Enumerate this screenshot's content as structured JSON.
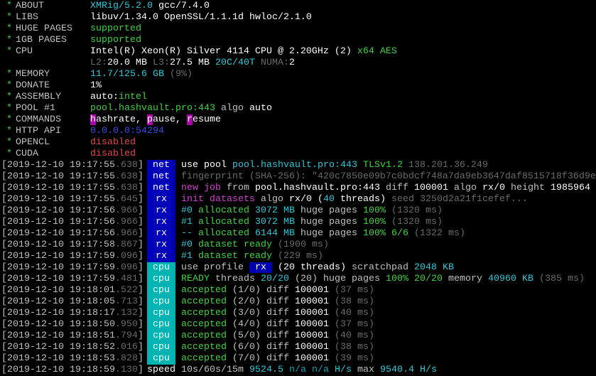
{
  "colors": {
    "w": "#c0c0c0",
    "W": "#ffffff",
    "d": "#6a6a6a",
    "g": "#3fd33f",
    "c": "#2cc8d8",
    "c2": "#1b9fb0",
    "b": "#3a4de8",
    "r": "#e04848",
    "m": "#d040d0",
    "star": "#3fd33f",
    "tag_net": "#0000b8",
    "tag_rx": "#0000b8",
    "tag_cpu": "#00b4b4"
  },
  "header": [
    {
      "star": "*",
      "label": "ABOUT",
      "segs": [
        {
          "t": "XMRig/5.2.0",
          "c": "c"
        },
        {
          "t": " gcc/7.4.0",
          "c": "W"
        }
      ]
    },
    {
      "star": "*",
      "label": "LIBS",
      "segs": [
        {
          "t": "libuv/1.34.0 OpenSSL/1.1.1d hwloc/2.1.0",
          "c": "W"
        }
      ]
    },
    {
      "star": "*",
      "label": "HUGE PAGES",
      "segs": [
        {
          "t": "supported",
          "c": "g"
        }
      ]
    },
    {
      "star": "*",
      "label": "1GB PAGES",
      "segs": [
        {
          "t": "supported",
          "c": "g"
        }
      ]
    },
    {
      "star": "*",
      "label": "CPU",
      "segs": [
        {
          "t": "Intel(R) Xeon(R) Silver 4114 CPU @ 2.20GHz (2) ",
          "c": "W"
        },
        {
          "t": "x64 AES",
          "c": "g"
        }
      ]
    },
    {
      "star": "",
      "label": "",
      "segs": [
        {
          "t": "L2:",
          "c": "d"
        },
        {
          "t": "20.0 MB ",
          "c": "W"
        },
        {
          "t": "L3:",
          "c": "d"
        },
        {
          "t": "27.5 MB ",
          "c": "W"
        },
        {
          "t": "20C/40T ",
          "c": "c"
        },
        {
          "t": "NUMA:",
          "c": "d"
        },
        {
          "t": "2",
          "c": "W"
        }
      ]
    },
    {
      "star": "*",
      "label": "MEMORY",
      "segs": [
        {
          "t": "11.7/125.6 GB ",
          "c": "c"
        },
        {
          "t": "(9%)",
          "c": "d"
        }
      ]
    },
    {
      "star": "*",
      "label": "DONATE",
      "segs": [
        {
          "t": "1%",
          "c": "W"
        }
      ]
    },
    {
      "star": "*",
      "label": "ASSEMBLY",
      "segs": [
        {
          "t": "auto:",
          "c": "W"
        },
        {
          "t": "intel",
          "c": "g"
        }
      ]
    },
    {
      "star": "*",
      "label": "POOL #1",
      "segs": [
        {
          "t": "pool.hashvault.pro:443 ",
          "c": "g"
        },
        {
          "t": "algo ",
          "c": "w"
        },
        {
          "t": "auto",
          "c": "W"
        }
      ]
    },
    {
      "star": "*",
      "label": "COMMANDS",
      "segs": [
        {
          "t": "h",
          "c": "hl"
        },
        {
          "t": "ashrate, ",
          "c": "W"
        },
        {
          "t": "p",
          "c": "hl"
        },
        {
          "t": "ause, ",
          "c": "W"
        },
        {
          "t": "r",
          "c": "hl"
        },
        {
          "t": "esume",
          "c": "W"
        }
      ]
    },
    {
      "star": "*",
      "label": "HTTP API",
      "segs": [
        {
          "t": "0.0.0.0:54294",
          "c": "b"
        }
      ]
    },
    {
      "star": "*",
      "label": "OPENCL",
      "segs": [
        {
          "t": "disabled",
          "c": "r"
        }
      ]
    },
    {
      "star": "*",
      "label": "CUDA",
      "segs": [
        {
          "t": "disabled",
          "c": "r"
        }
      ]
    }
  ],
  "log": [
    {
      "ts": "[2019-12-10 19:17:55",
      "ms": ".638",
      "tag": "net",
      "segs": [
        {
          "t": "use pool ",
          "c": "W"
        },
        {
          "t": "pool.hashvault.pro:443 ",
          "c": "c"
        },
        {
          "t": "TLSv1.2 ",
          "c": "g"
        },
        {
          "t": "138.201.36.249",
          "c": "d"
        }
      ]
    },
    {
      "ts": "[2019-12-10 19:17:55",
      "ms": ".638",
      "tag": "net",
      "segs": [
        {
          "t": "fingerprint (SHA-256): \"420c7850e09b7c0bdcf748a7da9eb3647daf8515718f36d9e",
          "c": "d"
        }
      ]
    },
    {
      "ts": "[2019-12-10 19:17:55",
      "ms": ".638",
      "tag": "net",
      "segs": [
        {
          "t": "new job ",
          "c": "m"
        },
        {
          "t": "from ",
          "c": "w"
        },
        {
          "t": "pool.hashvault.pro:443 ",
          "c": "W"
        },
        {
          "t": "diff ",
          "c": "w"
        },
        {
          "t": "100001 ",
          "c": "W"
        },
        {
          "t": "algo ",
          "c": "w"
        },
        {
          "t": "rx/0 ",
          "c": "W"
        },
        {
          "t": "height ",
          "c": "w"
        },
        {
          "t": "1985964",
          "c": "W"
        }
      ]
    },
    {
      "ts": "[2019-12-10 19:17:55",
      "ms": ".645",
      "tag": "rx",
      "segs": [
        {
          "t": "init datasets ",
          "c": "m"
        },
        {
          "t": "algo ",
          "c": "w"
        },
        {
          "t": "rx/0 ",
          "c": "W"
        },
        {
          "t": "(",
          "c": "W"
        },
        {
          "t": "40 ",
          "c": "c"
        },
        {
          "t": "threads) ",
          "c": "W"
        },
        {
          "t": "seed 3250d2a21f1cefef...",
          "c": "d"
        }
      ]
    },
    {
      "ts": "[2019-12-10 19:17:56",
      "ms": ".966",
      "tag": "rx",
      "segs": [
        {
          "t": "#0 ",
          "c": "c"
        },
        {
          "t": "allocated ",
          "c": "g"
        },
        {
          "t": "3072 MB ",
          "c": "c"
        },
        {
          "t": "huge pages ",
          "c": "w"
        },
        {
          "t": "100% ",
          "c": "g"
        },
        {
          "t": "(1320 ms)",
          "c": "d"
        }
      ]
    },
    {
      "ts": "[2019-12-10 19:17:56",
      "ms": ".966",
      "tag": "rx",
      "segs": [
        {
          "t": "#1 ",
          "c": "c"
        },
        {
          "t": "allocated ",
          "c": "g"
        },
        {
          "t": "3072 MB ",
          "c": "c"
        },
        {
          "t": "huge pages ",
          "c": "w"
        },
        {
          "t": "100% ",
          "c": "g"
        },
        {
          "t": "(1320 ms)",
          "c": "d"
        }
      ]
    },
    {
      "ts": "[2019-12-10 19:17:56",
      "ms": ".966",
      "tag": "rx",
      "segs": [
        {
          "t": "-- ",
          "c": "c"
        },
        {
          "t": "allocated ",
          "c": "g"
        },
        {
          "t": "6144 MB ",
          "c": "c"
        },
        {
          "t": "huge pages ",
          "c": "w"
        },
        {
          "t": "100% 6/6 ",
          "c": "g"
        },
        {
          "t": "(1322 ms)",
          "c": "d"
        }
      ]
    },
    {
      "ts": "[2019-12-10 19:17:58",
      "ms": ".867",
      "tag": "rx",
      "segs": [
        {
          "t": "#0 ",
          "c": "c"
        },
        {
          "t": "dataset ready ",
          "c": "g"
        },
        {
          "t": "(1900 ms)",
          "c": "d"
        }
      ]
    },
    {
      "ts": "[2019-12-10 19:17:59",
      "ms": ".096",
      "tag": "rx",
      "segs": [
        {
          "t": "#1 ",
          "c": "c"
        },
        {
          "t": "dataset ready ",
          "c": "g"
        },
        {
          "t": "(229 ms)",
          "c": "d"
        }
      ]
    },
    {
      "ts": "[2019-12-10 19:17:59",
      "ms": ".096",
      "tag": "cpu",
      "segs": [
        {
          "t": "use profile ",
          "c": "w"
        },
        {
          "t": " rx ",
          "c": "tagbox"
        },
        {
          "t": " (20 threads) ",
          "c": "W"
        },
        {
          "t": "scratchpad ",
          "c": "w"
        },
        {
          "t": "2048 KB",
          "c": "c"
        }
      ]
    },
    {
      "ts": "[2019-12-10 19:17:59",
      "ms": ".481",
      "tag": "cpu",
      "segs": [
        {
          "t": "READY ",
          "c": "g"
        },
        {
          "t": "threads ",
          "c": "w"
        },
        {
          "t": "20/20 ",
          "c": "c"
        },
        {
          "t": "(20) ",
          "c": "w"
        },
        {
          "t": "huge pages ",
          "c": "w"
        },
        {
          "t": "100% 20/20 ",
          "c": "g"
        },
        {
          "t": "memory ",
          "c": "w"
        },
        {
          "t": "40960 KB ",
          "c": "c"
        },
        {
          "t": "(385 ms)",
          "c": "d"
        }
      ]
    },
    {
      "ts": "[2019-12-10 19:18:01",
      "ms": ".522",
      "tag": "cpu",
      "segs": [
        {
          "t": "accepted ",
          "c": "g"
        },
        {
          "t": "(1/0) diff ",
          "c": "w"
        },
        {
          "t": "100001 ",
          "c": "W"
        },
        {
          "t": "(37 ms)",
          "c": "d"
        }
      ]
    },
    {
      "ts": "[2019-12-10 19:18:05",
      "ms": ".713",
      "tag": "cpu",
      "segs": [
        {
          "t": "accepted ",
          "c": "g"
        },
        {
          "t": "(2/0) diff ",
          "c": "w"
        },
        {
          "t": "100001 ",
          "c": "W"
        },
        {
          "t": "(38 ms)",
          "c": "d"
        }
      ]
    },
    {
      "ts": "[2019-12-10 19:18:17",
      "ms": ".132",
      "tag": "cpu",
      "segs": [
        {
          "t": "accepted ",
          "c": "g"
        },
        {
          "t": "(3/0) diff ",
          "c": "w"
        },
        {
          "t": "100001 ",
          "c": "W"
        },
        {
          "t": "(40 ms)",
          "c": "d"
        }
      ]
    },
    {
      "ts": "[2019-12-10 19:18:50",
      "ms": ".950",
      "tag": "cpu",
      "segs": [
        {
          "t": "accepted ",
          "c": "g"
        },
        {
          "t": "(4/0) diff ",
          "c": "w"
        },
        {
          "t": "100001 ",
          "c": "W"
        },
        {
          "t": "(37 ms)",
          "c": "d"
        }
      ]
    },
    {
      "ts": "[2019-12-10 19:18:51",
      "ms": ".794",
      "tag": "cpu",
      "segs": [
        {
          "t": "accepted ",
          "c": "g"
        },
        {
          "t": "(5/0) diff ",
          "c": "w"
        },
        {
          "t": "100001 ",
          "c": "W"
        },
        {
          "t": "(40 ms)",
          "c": "d"
        }
      ]
    },
    {
      "ts": "[2019-12-10 19:18:52",
      "ms": ".016",
      "tag": "cpu",
      "segs": [
        {
          "t": "accepted ",
          "c": "g"
        },
        {
          "t": "(6/0) diff ",
          "c": "w"
        },
        {
          "t": "100001 ",
          "c": "W"
        },
        {
          "t": "(38 ms)",
          "c": "d"
        }
      ]
    },
    {
      "ts": "[2019-12-10 19:18:53",
      "ms": ".828",
      "tag": "cpu",
      "segs": [
        {
          "t": "accepted ",
          "c": "g"
        },
        {
          "t": "(7/0) diff ",
          "c": "w"
        },
        {
          "t": "100001 ",
          "c": "W"
        },
        {
          "t": "(39 ms)",
          "c": "d"
        }
      ]
    },
    {
      "ts": "[2019-12-10 19:18:59",
      "ms": ".130",
      "tag": "",
      "segs": [
        {
          "t": "speed ",
          "c": "W"
        },
        {
          "t": "10s/60s/15m ",
          "c": "w"
        },
        {
          "t": "9524.5 ",
          "c": "c"
        },
        {
          "t": "n/a n/a ",
          "c": "c2"
        },
        {
          "t": "H/s ",
          "c": "c"
        },
        {
          "t": "max ",
          "c": "w"
        },
        {
          "t": "9540.4 H/s",
          "c": "c"
        }
      ]
    }
  ]
}
